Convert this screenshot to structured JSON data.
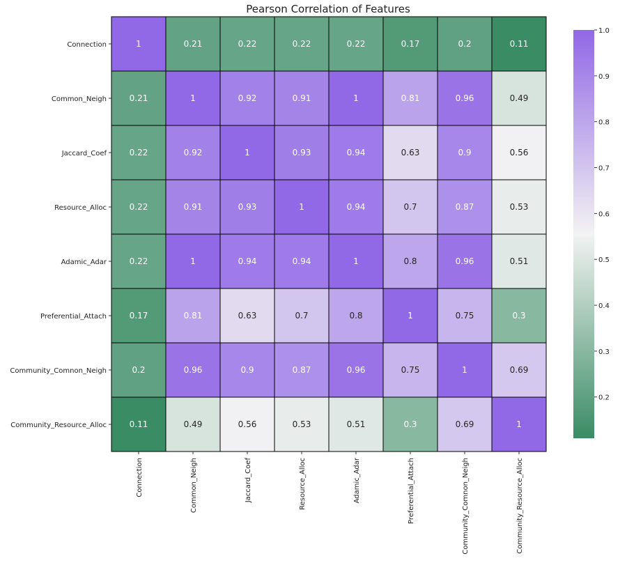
{
  "chart_data": {
    "type": "heatmap",
    "title": "Pearson Correlation of Features",
    "row_labels": [
      "Connection",
      "Common_Neigh",
      "Jaccard_Coef",
      "Resource_Alloc",
      "Adamic_Adar",
      "Preferential_Attach",
      "Community_Comnon_Neigh",
      "Community_Resource_Alloc"
    ],
    "column_labels": [
      "Connection",
      "Common_Neigh",
      "Jaccard_Coef",
      "Resource_Alloc",
      "Adamic_Adar",
      "Preferential_Attach",
      "Community_Comnon_Neigh",
      "Community_Resource_Alloc"
    ],
    "values": [
      [
        1,
        0.21,
        0.22,
        0.22,
        0.22,
        0.17,
        0.2,
        0.11
      ],
      [
        0.21,
        1,
        0.92,
        0.91,
        1,
        0.81,
        0.96,
        0.49
      ],
      [
        0.22,
        0.92,
        1,
        0.93,
        0.94,
        0.63,
        0.9,
        0.56
      ],
      [
        0.22,
        0.91,
        0.93,
        1,
        0.94,
        0.7,
        0.87,
        0.53
      ],
      [
        0.22,
        1,
        0.94,
        0.94,
        1,
        0.8,
        0.96,
        0.51
      ],
      [
        0.17,
        0.81,
        0.63,
        0.7,
        0.8,
        1,
        0.75,
        0.3
      ],
      [
        0.2,
        0.96,
        0.9,
        0.87,
        0.96,
        0.75,
        1,
        0.69
      ],
      [
        0.11,
        0.49,
        0.56,
        0.53,
        0.51,
        0.3,
        0.69,
        1
      ]
    ],
    "colorbar": {
      "vmin": 0.11,
      "vmax": 1.0,
      "ticks": [
        "0.2",
        "0.3",
        "0.4",
        "0.5",
        "0.6",
        "0.7",
        "0.8",
        "0.9",
        "1.0"
      ],
      "low_color": "#3a8c64",
      "mid_color": "#f2f2f2",
      "high_color": "#9168e6"
    },
    "annotations": true,
    "cell_border_color": "#000000"
  }
}
